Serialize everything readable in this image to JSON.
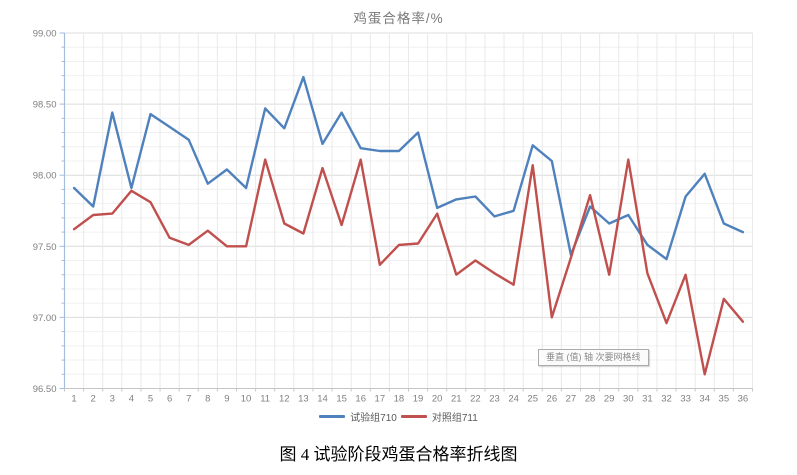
{
  "title": "鸡蛋合格率/%",
  "caption": "图 4 试验阶段鸡蛋合格率折线图",
  "tooltip_text": "垂直 (值) 轴 次要网格线",
  "colors": {
    "series_blue": "#4F81BD",
    "series_red": "#C0504D",
    "axis_line": "#A3BEDC",
    "x_axis_line": "#C6C6C6",
    "grid_major": "#DCDCDC",
    "grid_minor": "#F0F0F0",
    "tick_label": "#808080",
    "title_text": "#7A7A7A"
  },
  "chart_data": {
    "type": "line",
    "title": "鸡蛋合格率/%",
    "xlabel": "",
    "ylabel": "",
    "x": [
      1,
      2,
      3,
      4,
      5,
      6,
      7,
      8,
      9,
      10,
      11,
      12,
      13,
      14,
      15,
      16,
      17,
      18,
      19,
      20,
      21,
      22,
      23,
      24,
      25,
      26,
      27,
      28,
      29,
      30,
      31,
      32,
      33,
      34,
      35,
      36
    ],
    "series": [
      {
        "name": "试验组710",
        "color": "#4F81BD",
        "values": [
          97.91,
          97.78,
          98.44,
          97.91,
          98.43,
          98.34,
          98.25,
          97.94,
          98.04,
          97.91,
          98.47,
          98.33,
          98.69,
          98.22,
          98.44,
          98.19,
          98.17,
          98.17,
          98.3,
          97.77,
          97.83,
          97.85,
          97.71,
          97.75,
          98.21,
          98.1,
          97.44,
          97.78,
          97.66,
          97.72,
          97.51,
          97.41,
          97.85,
          98.01,
          97.66,
          97.6
        ]
      },
      {
        "name": "对照组711",
        "color": "#C0504D",
        "values": [
          97.62,
          97.72,
          97.73,
          97.89,
          97.81,
          97.56,
          97.51,
          97.61,
          97.5,
          97.5,
          98.11,
          97.66,
          97.59,
          98.05,
          97.65,
          98.11,
          97.37,
          97.51,
          97.52,
          97.73,
          97.3,
          97.4,
          97.31,
          97.23,
          98.07,
          97.0,
          97.42,
          97.86,
          97.3,
          98.11,
          97.31,
          96.96,
          97.3,
          96.6,
          97.13,
          96.97
        ]
      }
    ],
    "ylim": [
      96.5,
      99.0
    ],
    "ytick_major": 0.5,
    "ytick_minor": 0.1,
    "ytick_format_decimals": 2,
    "grid": "on",
    "legend_position": "bottom"
  }
}
